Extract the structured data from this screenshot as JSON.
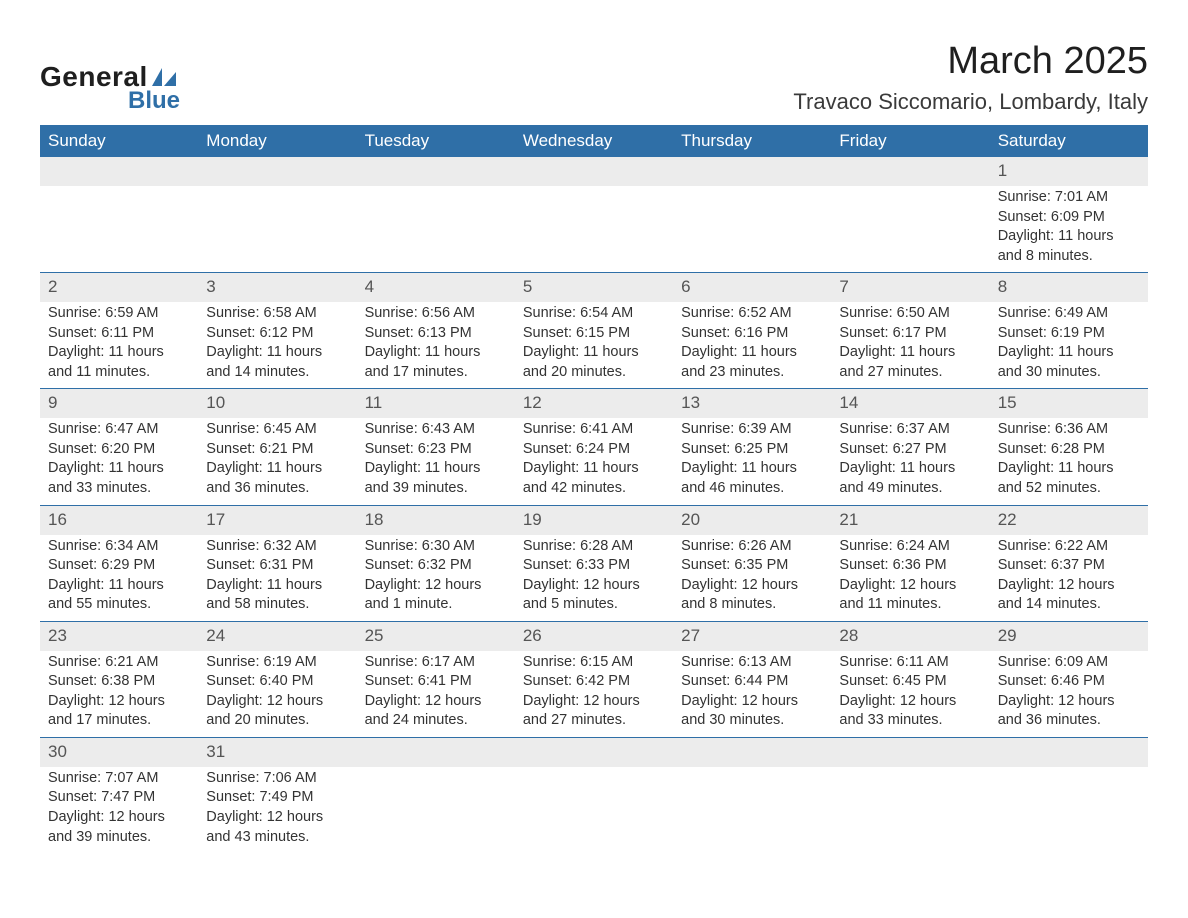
{
  "logo": {
    "text_general": "General",
    "text_blue": "Blue",
    "sail_color": "#2f6fa7"
  },
  "header": {
    "month_title": "March 2025",
    "location": "Travaco Siccomario, Lombardy, Italy"
  },
  "styling": {
    "header_bg": "#2f6fa7",
    "header_fg": "#ffffff",
    "daynum_bg": "#ececec",
    "text_color": "#333333",
    "row_sep_color": "#2f6fa7",
    "font_family": "Arial",
    "body_fontsize_pt": 11,
    "title_fontsize_pt": 28,
    "location_fontsize_pt": 16
  },
  "calendar": {
    "day_headers": [
      "Sunday",
      "Monday",
      "Tuesday",
      "Wednesday",
      "Thursday",
      "Friday",
      "Saturday"
    ],
    "weeks": [
      [
        null,
        null,
        null,
        null,
        null,
        null,
        {
          "num": "1",
          "sunrise": "Sunrise: 7:01 AM",
          "sunset": "Sunset: 6:09 PM",
          "daylight": "Daylight: 11 hours and 8 minutes."
        }
      ],
      [
        {
          "num": "2",
          "sunrise": "Sunrise: 6:59 AM",
          "sunset": "Sunset: 6:11 PM",
          "daylight": "Daylight: 11 hours and 11 minutes."
        },
        {
          "num": "3",
          "sunrise": "Sunrise: 6:58 AM",
          "sunset": "Sunset: 6:12 PM",
          "daylight": "Daylight: 11 hours and 14 minutes."
        },
        {
          "num": "4",
          "sunrise": "Sunrise: 6:56 AM",
          "sunset": "Sunset: 6:13 PM",
          "daylight": "Daylight: 11 hours and 17 minutes."
        },
        {
          "num": "5",
          "sunrise": "Sunrise: 6:54 AM",
          "sunset": "Sunset: 6:15 PM",
          "daylight": "Daylight: 11 hours and 20 minutes."
        },
        {
          "num": "6",
          "sunrise": "Sunrise: 6:52 AM",
          "sunset": "Sunset: 6:16 PM",
          "daylight": "Daylight: 11 hours and 23 minutes."
        },
        {
          "num": "7",
          "sunrise": "Sunrise: 6:50 AM",
          "sunset": "Sunset: 6:17 PM",
          "daylight": "Daylight: 11 hours and 27 minutes."
        },
        {
          "num": "8",
          "sunrise": "Sunrise: 6:49 AM",
          "sunset": "Sunset: 6:19 PM",
          "daylight": "Daylight: 11 hours and 30 minutes."
        }
      ],
      [
        {
          "num": "9",
          "sunrise": "Sunrise: 6:47 AM",
          "sunset": "Sunset: 6:20 PM",
          "daylight": "Daylight: 11 hours and 33 minutes."
        },
        {
          "num": "10",
          "sunrise": "Sunrise: 6:45 AM",
          "sunset": "Sunset: 6:21 PM",
          "daylight": "Daylight: 11 hours and 36 minutes."
        },
        {
          "num": "11",
          "sunrise": "Sunrise: 6:43 AM",
          "sunset": "Sunset: 6:23 PM",
          "daylight": "Daylight: 11 hours and 39 minutes."
        },
        {
          "num": "12",
          "sunrise": "Sunrise: 6:41 AM",
          "sunset": "Sunset: 6:24 PM",
          "daylight": "Daylight: 11 hours and 42 minutes."
        },
        {
          "num": "13",
          "sunrise": "Sunrise: 6:39 AM",
          "sunset": "Sunset: 6:25 PM",
          "daylight": "Daylight: 11 hours and 46 minutes."
        },
        {
          "num": "14",
          "sunrise": "Sunrise: 6:37 AM",
          "sunset": "Sunset: 6:27 PM",
          "daylight": "Daylight: 11 hours and 49 minutes."
        },
        {
          "num": "15",
          "sunrise": "Sunrise: 6:36 AM",
          "sunset": "Sunset: 6:28 PM",
          "daylight": "Daylight: 11 hours and 52 minutes."
        }
      ],
      [
        {
          "num": "16",
          "sunrise": "Sunrise: 6:34 AM",
          "sunset": "Sunset: 6:29 PM",
          "daylight": "Daylight: 11 hours and 55 minutes."
        },
        {
          "num": "17",
          "sunrise": "Sunrise: 6:32 AM",
          "sunset": "Sunset: 6:31 PM",
          "daylight": "Daylight: 11 hours and 58 minutes."
        },
        {
          "num": "18",
          "sunrise": "Sunrise: 6:30 AM",
          "sunset": "Sunset: 6:32 PM",
          "daylight": "Daylight: 12 hours and 1 minute."
        },
        {
          "num": "19",
          "sunrise": "Sunrise: 6:28 AM",
          "sunset": "Sunset: 6:33 PM",
          "daylight": "Daylight: 12 hours and 5 minutes."
        },
        {
          "num": "20",
          "sunrise": "Sunrise: 6:26 AM",
          "sunset": "Sunset: 6:35 PM",
          "daylight": "Daylight: 12 hours and 8 minutes."
        },
        {
          "num": "21",
          "sunrise": "Sunrise: 6:24 AM",
          "sunset": "Sunset: 6:36 PM",
          "daylight": "Daylight: 12 hours and 11 minutes."
        },
        {
          "num": "22",
          "sunrise": "Sunrise: 6:22 AM",
          "sunset": "Sunset: 6:37 PM",
          "daylight": "Daylight: 12 hours and 14 minutes."
        }
      ],
      [
        {
          "num": "23",
          "sunrise": "Sunrise: 6:21 AM",
          "sunset": "Sunset: 6:38 PM",
          "daylight": "Daylight: 12 hours and 17 minutes."
        },
        {
          "num": "24",
          "sunrise": "Sunrise: 6:19 AM",
          "sunset": "Sunset: 6:40 PM",
          "daylight": "Daylight: 12 hours and 20 minutes."
        },
        {
          "num": "25",
          "sunrise": "Sunrise: 6:17 AM",
          "sunset": "Sunset: 6:41 PM",
          "daylight": "Daylight: 12 hours and 24 minutes."
        },
        {
          "num": "26",
          "sunrise": "Sunrise: 6:15 AM",
          "sunset": "Sunset: 6:42 PM",
          "daylight": "Daylight: 12 hours and 27 minutes."
        },
        {
          "num": "27",
          "sunrise": "Sunrise: 6:13 AM",
          "sunset": "Sunset: 6:44 PM",
          "daylight": "Daylight: 12 hours and 30 minutes."
        },
        {
          "num": "28",
          "sunrise": "Sunrise: 6:11 AM",
          "sunset": "Sunset: 6:45 PM",
          "daylight": "Daylight: 12 hours and 33 minutes."
        },
        {
          "num": "29",
          "sunrise": "Sunrise: 6:09 AM",
          "sunset": "Sunset: 6:46 PM",
          "daylight": "Daylight: 12 hours and 36 minutes."
        }
      ],
      [
        {
          "num": "30",
          "sunrise": "Sunrise: 7:07 AM",
          "sunset": "Sunset: 7:47 PM",
          "daylight": "Daylight: 12 hours and 39 minutes."
        },
        {
          "num": "31",
          "sunrise": "Sunrise: 7:06 AM",
          "sunset": "Sunset: 7:49 PM",
          "daylight": "Daylight: 12 hours and 43 minutes."
        },
        null,
        null,
        null,
        null,
        null
      ]
    ]
  }
}
